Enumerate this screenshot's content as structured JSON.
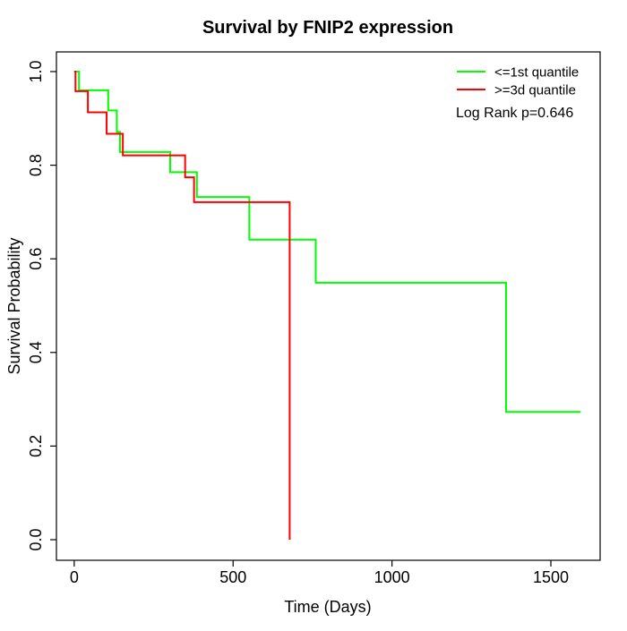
{
  "chart_data": {
    "type": "line",
    "subtype": "kaplan-meier-step-curve",
    "title": "Survival by FNIP2 expression",
    "xlabel": "Time (Days)",
    "ylabel": "Survival Probability",
    "x_tick_values": [
      0,
      500,
      1000,
      1500
    ],
    "x_tick_labels": [
      "0",
      "500",
      "1000",
      "1500"
    ],
    "y_tick_values": [
      0.0,
      0.2,
      0.4,
      0.6,
      0.8,
      1.0
    ],
    "y_tick_labels": [
      "0.0",
      "0.2",
      "0.4",
      "0.6",
      "0.8",
      "1.0"
    ],
    "xlim": [
      -56,
      1655
    ],
    "ylim": [
      -0.044,
      1.042
    ],
    "grid": false,
    "box": true,
    "legend_position": "top-right",
    "annotation": "Log Rank p=0.646",
    "legend": [
      {
        "label": "<=1st quantile",
        "color": "#00ff00"
      },
      {
        "label": ">=3d quantile",
        "color": "#ff0000"
      }
    ],
    "series": [
      {
        "name": "<=1st quantile",
        "color": "#00ff00",
        "end_time": 1594,
        "steps": [
          [
            0,
            1.0
          ],
          [
            15,
            0.96
          ],
          [
            107,
            0.917
          ],
          [
            134,
            0.871
          ],
          [
            144,
            0.828
          ],
          [
            302,
            0.785
          ],
          [
            386,
            0.732
          ],
          [
            551,
            0.641
          ],
          [
            760,
            0.549
          ],
          [
            1359,
            0.273
          ]
        ]
      },
      {
        "name": ">=3d quantile",
        "color": "#ff0000",
        "end_time": 678,
        "steps": [
          [
            0,
            1.0
          ],
          [
            4,
            0.958
          ],
          [
            43,
            0.913
          ],
          [
            102,
            0.867
          ],
          [
            153,
            0.821
          ],
          [
            349,
            0.774
          ],
          [
            377,
            0.721
          ],
          [
            678,
            0.0
          ]
        ]
      }
    ]
  }
}
